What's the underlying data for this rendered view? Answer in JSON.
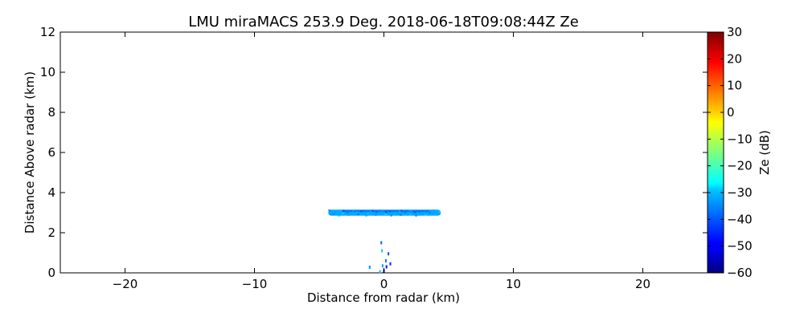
{
  "chart_data": {
    "type": "heatmap",
    "title": "LMU miraMACS 253.9 Deg. 2018-06-18T09:08:44Z  Ze",
    "xlabel": "Distance from radar (km)",
    "ylabel": "Distance Above radar  (km)",
    "xlim": [
      -25,
      25
    ],
    "ylim": [
      0,
      12
    ],
    "xticks": [
      -20,
      -10,
      0,
      10,
      20
    ],
    "xtick_labels": [
      "−20",
      "−10",
      "0",
      "10",
      "20"
    ],
    "yticks": [
      0,
      2,
      4,
      6,
      8,
      10,
      12
    ],
    "ytick_labels": [
      "0",
      "2",
      "4",
      "6",
      "8",
      "10",
      "12"
    ],
    "colorbar": {
      "label": "Ze (dB)",
      "colormap": "jet",
      "range": [
        -60,
        30
      ],
      "ticks": [
        -60,
        -50,
        -40,
        -30,
        -20,
        -10,
        0,
        10,
        20,
        30
      ],
      "tick_labels": [
        "−60",
        "−50",
        "−40",
        "−30",
        "−20",
        "−10",
        "0",
        "10",
        "20",
        "30"
      ]
    },
    "grid": false,
    "layers": [
      {
        "x_range": [
          -4.3,
          4.4
        ],
        "y_center": 3.0,
        "thickness": 0.3,
        "ze_mean": -34
      },
      {
        "x_range": [
          -3.2,
          3.5
        ],
        "y_center": 3.08,
        "thickness": 0.1,
        "ze_mean": -38
      }
    ],
    "echoes": [
      {
        "x": -0.2,
        "y": 1.5,
        "ze": -40
      },
      {
        "x": -0.15,
        "y": 1.1,
        "ze": -30
      },
      {
        "x": 0.35,
        "y": 0.95,
        "ze": -42
      },
      {
        "x": 0.15,
        "y": 0.6,
        "ze": -38
      },
      {
        "x": 0.5,
        "y": 0.45,
        "ze": -45
      },
      {
        "x": -0.1,
        "y": 0.35,
        "ze": -35
      },
      {
        "x": 0.2,
        "y": 0.3,
        "ze": -48
      },
      {
        "x": -1.1,
        "y": 0.28,
        "ze": -36
      },
      {
        "x": 0.0,
        "y": 0.1,
        "ze": -50
      },
      {
        "x": -0.3,
        "y": 0.05,
        "ze": -32
      }
    ]
  }
}
